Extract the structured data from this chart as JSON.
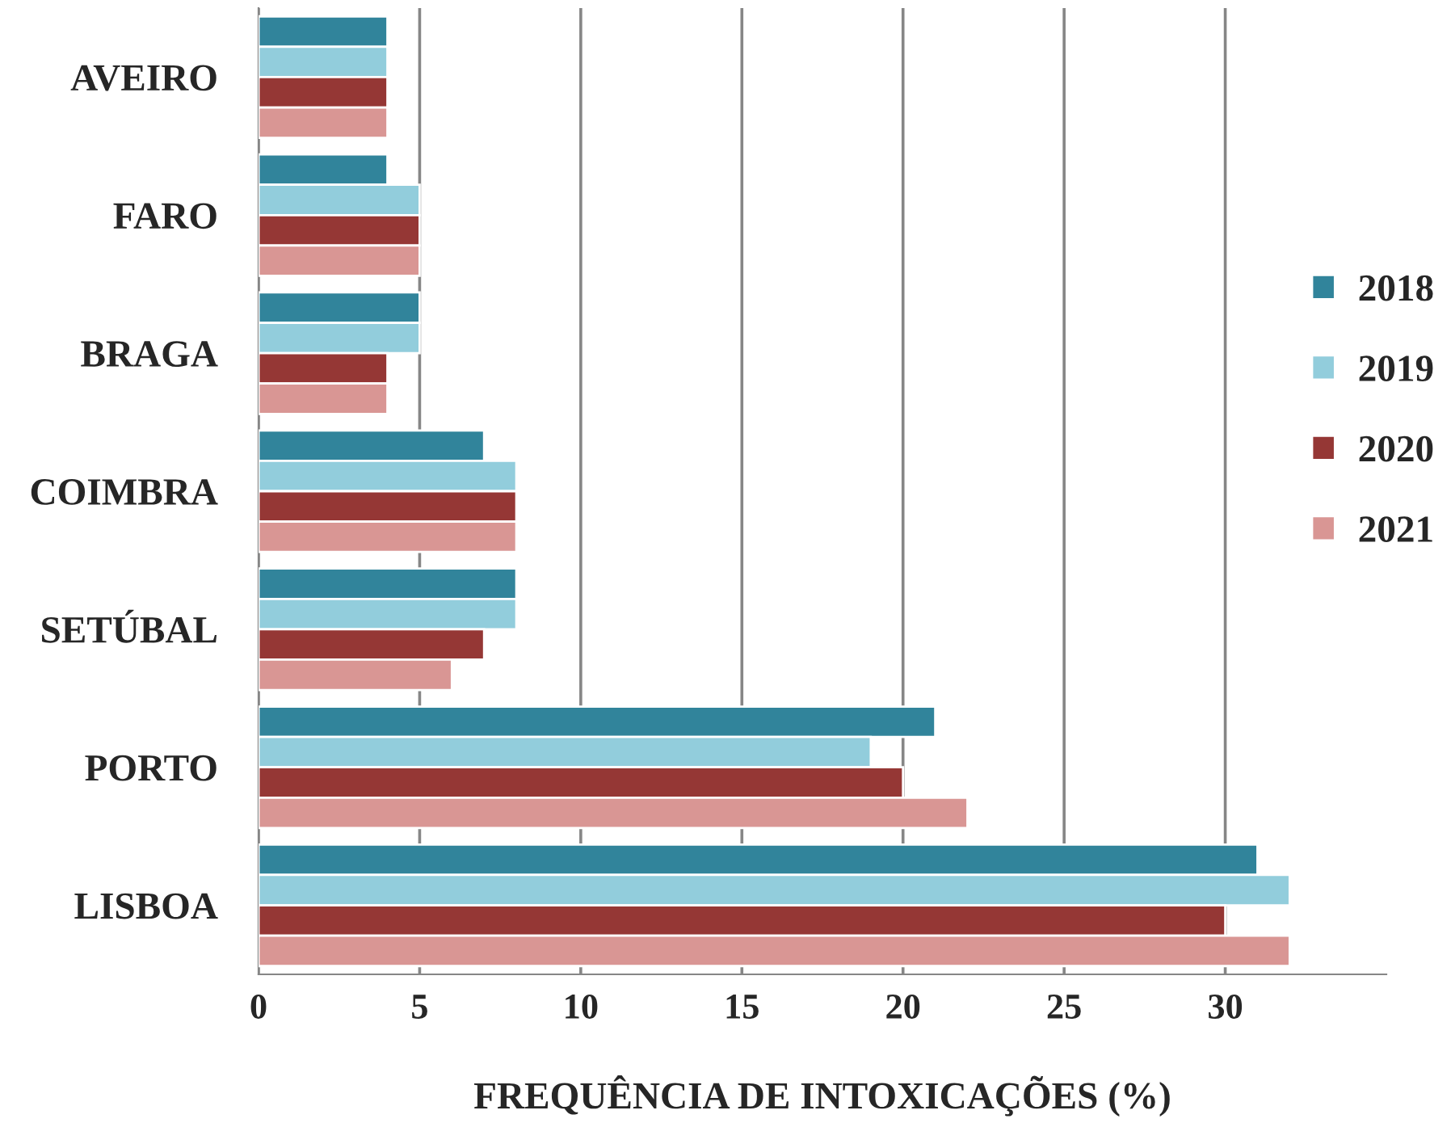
{
  "chart_data": {
    "type": "bar",
    "orientation": "horizontal",
    "xlabel": "FREQUÊNCIA DE INTOXICAÇÕES (%)",
    "categories": [
      "AVEIRO",
      "FARO",
      "BRAGA",
      "COIMBRA",
      "SETÚBAL",
      "PORTO",
      "LISBOA"
    ],
    "series": [
      {
        "name": "2018",
        "color": "#31849b",
        "values": [
          4,
          4,
          5,
          7,
          8,
          21,
          31
        ]
      },
      {
        "name": "2019",
        "color": "#92cddc",
        "values": [
          4,
          5,
          5,
          8,
          8,
          19,
          32
        ]
      },
      {
        "name": "2020",
        "color": "#953735",
        "values": [
          4,
          5,
          4,
          8,
          7,
          20,
          30
        ]
      },
      {
        "name": "2021",
        "color": "#d99694",
        "values": [
          4,
          5,
          4,
          8,
          6,
          22,
          32
        ]
      }
    ],
    "xlim": [
      0,
      35
    ],
    "xticks": [
      0,
      5,
      10,
      15,
      20,
      25,
      30
    ],
    "grid": "x",
    "legend": "right"
  }
}
